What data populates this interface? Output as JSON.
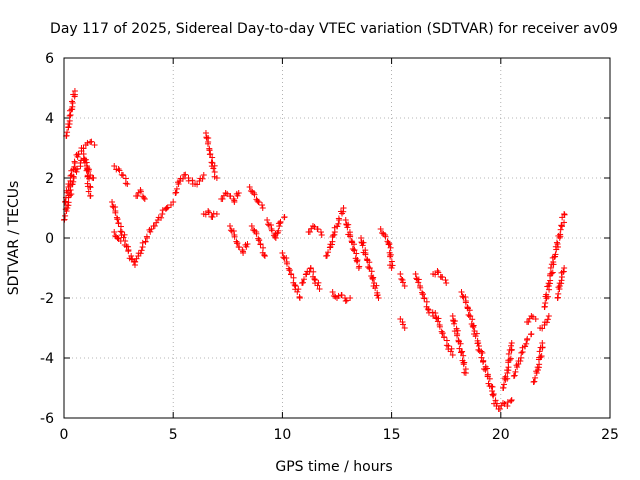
{
  "chart_data": {
    "type": "scatter",
    "title": "Day 117 of 2025, Sidereal Day-to-day VTEC variation (SDTVAR) for receiver av09",
    "xlabel": "GPS time / hours",
    "ylabel": "SDTVAR / TECUs",
    "xlim": [
      0,
      25
    ],
    "ylim": [
      -6,
      6
    ],
    "xticks": [
      0,
      5,
      10,
      15,
      20,
      25
    ],
    "xtick_labels": [
      "0",
      "5",
      "10",
      "15",
      "20",
      "25"
    ],
    "yticks": [
      -6,
      -4,
      -2,
      0,
      2,
      4,
      6
    ],
    "ytick_labels": [
      "-6",
      "-4",
      "-2",
      "0",
      "2",
      "4",
      "6"
    ],
    "grid": true,
    "marker": "plus",
    "color": "#ff0000",
    "series": [
      {
        "name": "SDTVAR",
        "segments": [
          {
            "x": [
              0.0,
              0.15,
              0.3,
              0.45,
              0.6,
              0.75,
              0.9,
              1.05,
              1.2,
              1.35
            ],
            "y": [
              0.6,
              1.0,
              1.6,
              2.0,
              2.3,
              2.5,
              2.6,
              2.4,
              2.1,
              2.0
            ]
          },
          {
            "x": [
              0.1,
              0.2,
              0.3,
              0.4,
              0.5
            ],
            "y": [
              3.4,
              3.7,
              4.1,
              4.5,
              4.9
            ]
          },
          {
            "x": [
              0.05,
              0.2,
              0.35,
              0.5,
              0.65,
              0.8
            ],
            "y": [
              1.2,
              1.7,
              2.1,
              2.5,
              2.8,
              2.9
            ]
          },
          {
            "x": [
              0.8,
              1.0,
              1.2,
              1.4
            ],
            "y": [
              3.0,
              3.1,
              3.2,
              3.1
            ]
          },
          {
            "x": [
              0.9,
              1.05,
              1.2
            ],
            "y": [
              2.8,
              2.3,
              1.4
            ]
          },
          {
            "x": [
              2.3,
              2.5,
              2.7,
              2.9
            ],
            "y": [
              2.4,
              2.3,
              2.1,
              1.8
            ]
          },
          {
            "x": [
              2.2,
              2.35,
              2.5,
              2.65,
              2.8,
              2.95,
              3.1,
              3.25
            ],
            "y": [
              1.2,
              0.9,
              0.5,
              0.2,
              -0.1,
              -0.4,
              -0.7,
              -0.9
            ]
          },
          {
            "x": [
              2.3,
              2.45,
              2.6
            ],
            "y": [
              0.2,
              0.0,
              -0.1
            ]
          },
          {
            "x": [
              3.2,
              3.4,
              3.6,
              3.8,
              4.0
            ],
            "y": [
              -0.8,
              -0.6,
              -0.3,
              0.0,
              0.3
            ]
          },
          {
            "x": [
              3.3,
              3.5,
              3.7
            ],
            "y": [
              1.4,
              1.6,
              1.3
            ]
          },
          {
            "x": [
              4.1,
              4.3,
              4.5,
              4.7,
              4.9,
              5.0
            ],
            "y": [
              0.4,
              0.6,
              0.8,
              1.0,
              1.1,
              1.2
            ]
          },
          {
            "x": [
              5.1,
              5.3,
              5.5,
              5.7,
              5.9
            ],
            "y": [
              1.5,
              1.9,
              2.1,
              2.0,
              1.8
            ]
          },
          {
            "x": [
              6.0,
              6.2,
              6.4
            ],
            "y": [
              1.8,
              1.9,
              2.1
            ]
          },
          {
            "x": [
              6.5,
              6.6,
              6.7,
              6.8,
              6.9,
              7.0
            ],
            "y": [
              3.5,
              3.2,
              2.8,
              2.5,
              2.2,
              2.0
            ]
          },
          {
            "x": [
              6.4,
              6.6,
              6.8,
              7.0
            ],
            "y": [
              0.8,
              0.9,
              0.7,
              0.8
            ]
          },
          {
            "x": [
              7.2,
              7.4,
              7.6,
              7.8,
              8.0
            ],
            "y": [
              1.3,
              1.5,
              1.4,
              1.2,
              1.5
            ]
          },
          {
            "x": [
              7.6,
              7.8,
              8.0,
              8.2,
              8.4
            ],
            "y": [
              0.4,
              0.1,
              -0.3,
              -0.5,
              -0.2
            ]
          },
          {
            "x": [
              8.5,
              8.7,
              8.9,
              9.1
            ],
            "y": [
              1.7,
              1.5,
              1.2,
              1.0
            ]
          },
          {
            "x": [
              8.6,
              8.8,
              9.0,
              9.2
            ],
            "y": [
              0.4,
              0.2,
              -0.2,
              -0.6
            ]
          },
          {
            "x": [
              9.3,
              9.5,
              9.7,
              9.9,
              10.1
            ],
            "y": [
              0.6,
              0.3,
              0.0,
              0.5,
              0.7
            ]
          },
          {
            "x": [
              10.0,
              10.2,
              10.4,
              10.6,
              10.8
            ],
            "y": [
              -0.5,
              -0.8,
              -1.2,
              -1.6,
              -2.0
            ]
          },
          {
            "x": [
              10.9,
              11.1,
              11.3,
              11.5,
              11.7
            ],
            "y": [
              -1.5,
              -1.2,
              -1.0,
              -1.4,
              -1.7
            ]
          },
          {
            "x": [
              11.2,
              11.4,
              11.6,
              11.8
            ],
            "y": [
              0.2,
              0.4,
              0.3,
              0.1
            ]
          },
          {
            "x": [
              12.0,
              12.2,
              12.4,
              12.6,
              12.8
            ],
            "y": [
              -0.6,
              -0.3,
              0.2,
              0.6,
              1.0
            ]
          },
          {
            "x": [
              12.3,
              12.5,
              12.7,
              12.9,
              13.1
            ],
            "y": [
              -1.8,
              -2.0,
              -1.9,
              -2.1,
              -2.0
            ]
          },
          {
            "x": [
              12.9,
              13.1,
              13.3,
              13.5
            ],
            "y": [
              0.6,
              0.1,
              -0.4,
              -1.0
            ]
          },
          {
            "x": [
              13.6,
              13.8,
              14.0,
              14.2,
              14.4
            ],
            "y": [
              0.0,
              -0.5,
              -1.0,
              -1.5,
              -2.0
            ]
          },
          {
            "x": [
              14.5,
              14.7,
              14.9,
              15.0
            ],
            "y": [
              0.3,
              0.1,
              -0.2,
              -1.0
            ]
          },
          {
            "x": [
              15.4,
              15.5,
              15.6
            ],
            "y": [
              -1.2,
              -1.4,
              -1.6
            ]
          },
          {
            "x": [
              15.4,
              15.5,
              15.6
            ],
            "y": [
              -2.7,
              -2.8,
              -3.0
            ]
          },
          {
            "x": [
              16.1,
              16.3,
              16.5,
              16.7,
              16.9
            ],
            "y": [
              -1.2,
              -1.6,
              -2.0,
              -2.4,
              -2.6
            ]
          },
          {
            "x": [
              16.9,
              17.1,
              17.3,
              17.5
            ],
            "y": [
              -1.2,
              -1.1,
              -1.3,
              -1.5
            ]
          },
          {
            "x": [
              17.0,
              17.2,
              17.4,
              17.6,
              17.8
            ],
            "y": [
              -2.5,
              -2.9,
              -3.3,
              -3.6,
              -3.9
            ]
          },
          {
            "x": [
              17.8,
              18.0,
              18.2,
              18.4
            ],
            "y": [
              -2.6,
              -3.2,
              -3.8,
              -4.5
            ]
          },
          {
            "x": [
              18.2,
              18.4,
              18.6,
              18.8,
              19.0,
              19.2,
              19.4,
              19.6,
              19.8
            ],
            "y": [
              -1.8,
              -2.1,
              -2.6,
              -3.1,
              -3.6,
              -4.1,
              -4.6,
              -5.1,
              -5.6
            ]
          },
          {
            "x": [
              19.9,
              20.1,
              20.3,
              20.5
            ],
            "y": [
              -5.7,
              -5.5,
              -5.6,
              -5.4
            ]
          },
          {
            "x": [
              20.1,
              20.3,
              20.5
            ],
            "y": [
              -5.0,
              -4.5,
              -3.5
            ]
          },
          {
            "x": [
              20.6,
              20.8,
              21.0,
              21.2,
              21.4
            ],
            "y": [
              -4.6,
              -4.2,
              -3.8,
              -3.4,
              -3.2
            ]
          },
          {
            "x": [
              21.2,
              21.4,
              21.6
            ],
            "y": [
              -2.8,
              -2.6,
              -2.7
            ]
          },
          {
            "x": [
              21.5,
              21.7,
              21.9
            ],
            "y": [
              -4.8,
              -4.4,
              -3.5
            ]
          },
          {
            "x": [
              21.8,
              22.0,
              22.2
            ],
            "y": [
              -3.0,
              -2.9,
              -2.6
            ]
          },
          {
            "x": [
              22.0,
              22.2,
              22.4,
              22.6,
              22.8,
              22.9
            ],
            "y": [
              -2.3,
              -1.6,
              -0.8,
              -0.2,
              0.4,
              0.8
            ]
          },
          {
            "x": [
              22.6,
              22.7,
              22.8,
              22.9
            ],
            "y": [
              -2.0,
              -1.6,
              -1.3,
              -1.0
            ]
          }
        ]
      }
    ]
  }
}
